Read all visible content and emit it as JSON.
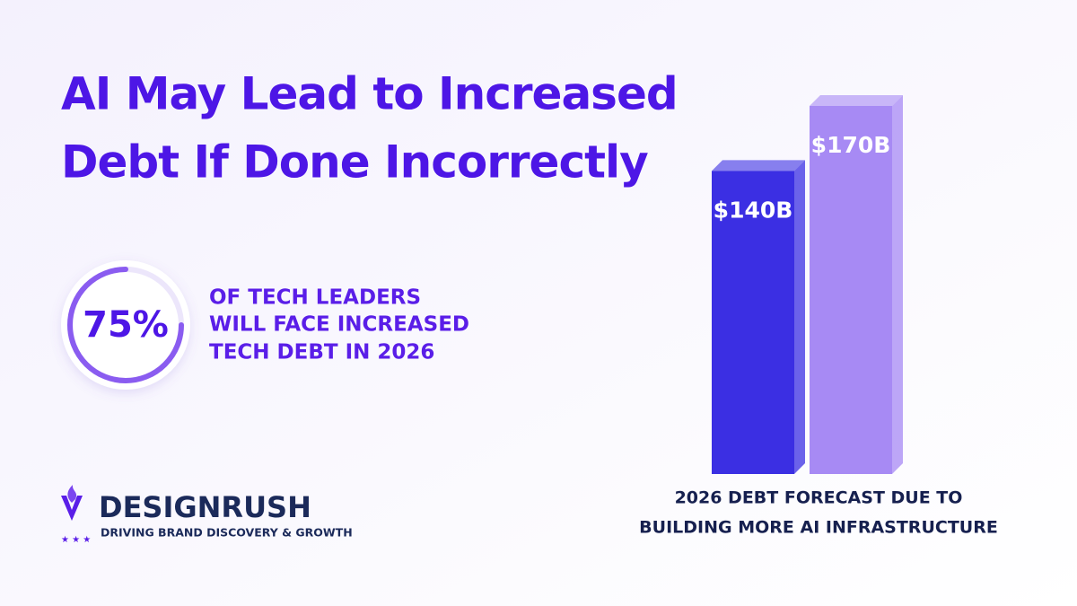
{
  "title": [
    "AI May Lead to Increased",
    "Debt If Done Incorrectly"
  ],
  "chart_data": [
    {
      "type": "gauge",
      "values": [
        75
      ],
      "value_labels": [
        "75%"
      ],
      "color": "#8a5cf0",
      "caption": [
        "OF TECH LEADERS",
        "WILL FACE INCREASED",
        "TECH DEBT IN 2026"
      ]
    },
    {
      "type": "bar",
      "values": [
        140,
        170
      ],
      "value_labels": [
        "$140B",
        "$170B"
      ],
      "colors": [
        "#3b2fe3",
        "#a78af4"
      ],
      "caption": [
        "2026 DEBT FORECAST DUE TO",
        "BUILDING MORE AI INFRASTRUCTURE"
      ]
    }
  ],
  "brand": {
    "name": "DESIGNRUSH",
    "tagline": "DRIVING BRAND DISCOVERY & GROWTH"
  }
}
